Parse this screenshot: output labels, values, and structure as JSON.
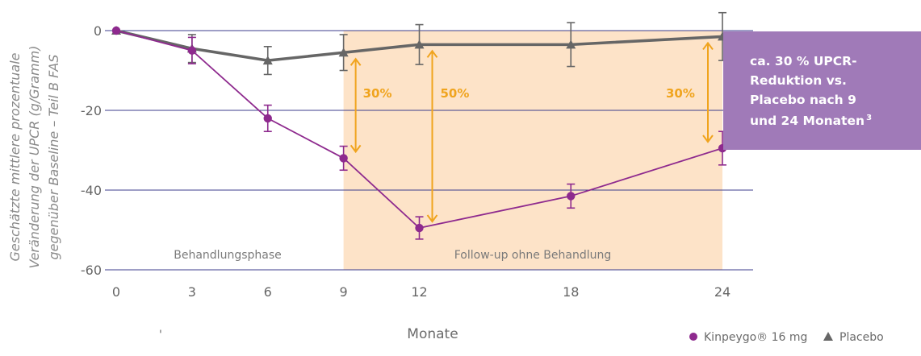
{
  "chart_data": {
    "type": "line",
    "title": "",
    "xlabel": "Monate",
    "ylabel_lines": [
      "Geschätzte mittlere prozentuale",
      "Veränderung der UPCR (g/Gramm)",
      "gegenüber Baseline – Teil B FAS"
    ],
    "x": [
      0,
      3,
      6,
      9,
      12,
      18,
      24
    ],
    "x_ticks": [
      "0",
      "3",
      "6",
      "9",
      "12",
      "18",
      "24"
    ],
    "y_ticks": [
      "0",
      "-20",
      "-40",
      "-60"
    ],
    "ylim": [
      -60,
      0
    ],
    "grid": true,
    "series": [
      {
        "name": "Kinpeygo® 16 mg",
        "marker": "circle",
        "color": "#8e2a8e",
        "values": [
          0,
          -5,
          -22,
          -32,
          -49.5,
          -41.5,
          -29.5
        ],
        "error": [
          0,
          3.3,
          3.3,
          3,
          2.8,
          3,
          4.2
        ]
      },
      {
        "name": "Placebo",
        "marker": "triangle",
        "color": "#666666",
        "values": [
          0,
          -4.5,
          -7.5,
          -5.5,
          -3.5,
          -3.5,
          -1.5
        ],
        "error": [
          0,
          3.5,
          3.5,
          4.5,
          5,
          5.5,
          6
        ]
      }
    ],
    "phases": [
      {
        "label": "Behandlungsphase",
        "from": 0,
        "to": 9,
        "shaded": false
      },
      {
        "label": "Follow-up ohne Behandlung",
        "from": 9,
        "to": 24,
        "shaded": true,
        "color": "#fde3c8"
      }
    ],
    "difference_annotations": [
      {
        "x": 9,
        "label": "30%"
      },
      {
        "x": 12,
        "label": "50%"
      },
      {
        "x": 24,
        "label": "30%"
      }
    ],
    "annotation_color": "#f0a41e",
    "callout": {
      "lines": [
        "ca. 30 % UPCR-",
        "Reduktion vs.",
        "Placebo nach 9",
        "und 24 Monaten"
      ],
      "superscript": "3",
      "background": "#a07ab8"
    },
    "legend_position": "bottom-right",
    "stray_mark": "'"
  }
}
